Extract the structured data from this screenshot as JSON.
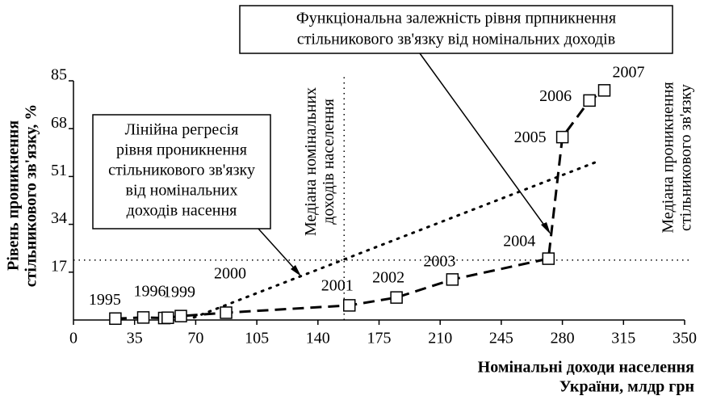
{
  "chart_data": {
    "type": "line",
    "y_label": [
      "Рівень проникнення",
      "стільникового зв'язку, %"
    ],
    "x_label": [
      "Номінальні доходи населення",
      "України, млдр грн"
    ],
    "xlim": [
      0,
      350
    ],
    "xticks": [
      0,
      35,
      70,
      105,
      140,
      175,
      210,
      245,
      280,
      315,
      350
    ],
    "ylim": [
      0,
      85
    ],
    "yticks": [
      17,
      34,
      51,
      68,
      85
    ],
    "series": [
      {
        "name": null,
        "color": "#000000",
        "x": [
          24,
          40,
          52,
          54,
          61.5,
          87.4,
          158,
          185,
          217,
          272,
          280,
          295.5,
          304
        ],
        "values": [
          0.5,
          0.9,
          0.7,
          0.8,
          1.4,
          2.6,
          5.2,
          8,
          14.4,
          21.8,
          65,
          78,
          81.6
        ],
        "point_labels": [
          "1995",
          "1996",
          null,
          null,
          "1999",
          "2000",
          "2001",
          "2002",
          "2003",
          "2004",
          "2005",
          "2006",
          "2007"
        ]
      }
    ],
    "regression": {
      "x": [
        69,
        300
      ],
      "values": [
        0.9,
        56.3
      ]
    },
    "median_x": {
      "value": 155,
      "label": [
        "Медіана номінальних",
        "доходів населення"
      ]
    },
    "median_y": {
      "value": 21.3,
      "label": [
        "Медіана проникнення",
        "стільникового зв'язку"
      ]
    },
    "annotations": [
      [
        "Функціональна залежність рівня прпникнення",
        "стільникового зв'язку від номінальних доходів"
      ],
      [
        "Лінійна регресія",
        "рівня проникнення",
        "стільникового зв'язку",
        "від номінальних",
        "доходів насення"
      ]
    ]
  }
}
